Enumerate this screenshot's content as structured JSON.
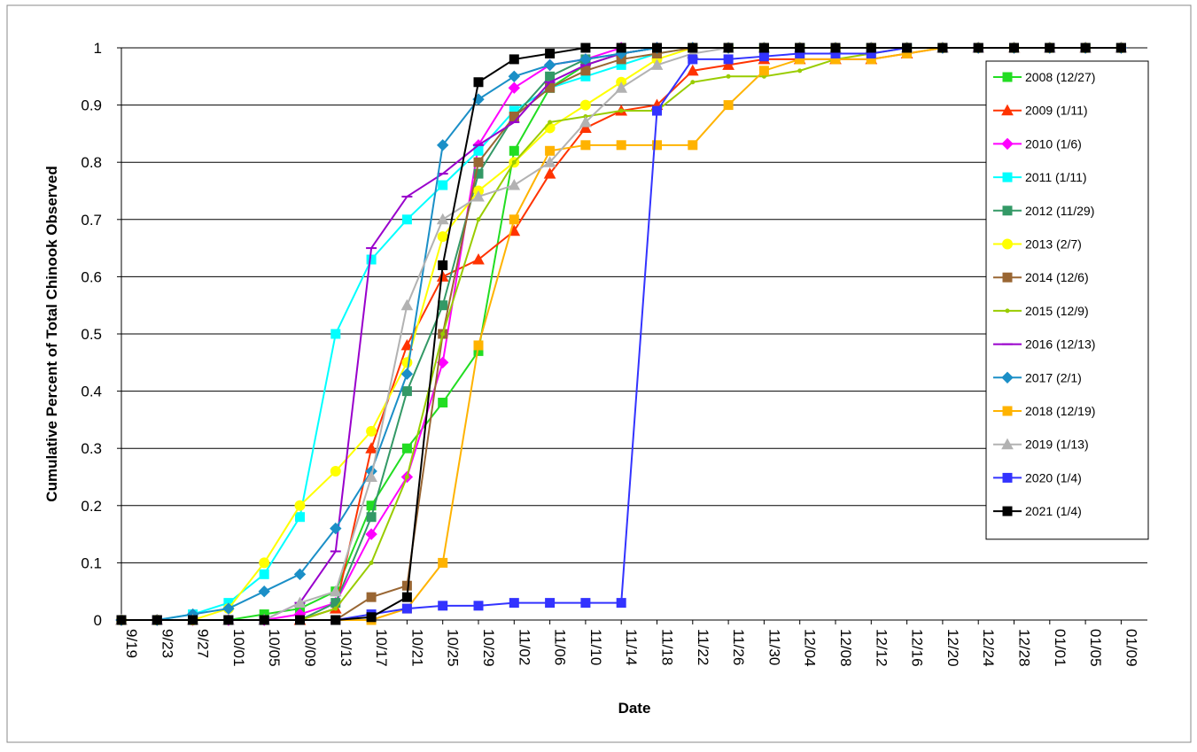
{
  "chart_data": {
    "type": "line",
    "y_label": "Cumulative Percent of Total Chinook Observed",
    "x_label": "Date",
    "categories": [
      "9/19",
      "9/23",
      "9/27",
      "10/01",
      "10/05",
      "10/09",
      "10/13",
      "10/17",
      "10/21",
      "10/25",
      "10/29",
      "11/02",
      "11/06",
      "11/10",
      "11/14",
      "11/18",
      "11/22",
      "11/26",
      "11/30",
      "12/04",
      "12/08",
      "12/12",
      "12/16",
      "12/20",
      "12/24",
      "12/28",
      "01/01",
      "01/05",
      "01/09"
    ],
    "ylim": [
      0,
      1
    ],
    "yticks": [
      0,
      0.1,
      0.2,
      0.3,
      0.4,
      0.5,
      0.6,
      0.7,
      0.8,
      0.9,
      1
    ],
    "grid": true,
    "legend": "right",
    "series": [
      {
        "name": "2008 (12/27)",
        "color": "#22dd22",
        "marker": "square",
        "values": [
          0,
          0,
          0,
          0,
          0.01,
          0.02,
          0.05,
          0.2,
          0.3,
          0.38,
          0.47,
          0.82,
          0.93,
          0.97,
          0.99,
          1,
          1,
          1,
          1,
          1,
          1,
          1,
          1,
          1,
          1,
          1,
          1,
          1,
          1
        ]
      },
      {
        "name": "2009 (1/11)",
        "color": "#ff3300",
        "marker": "triangle",
        "values": [
          0,
          0,
          0,
          0,
          0,
          0,
          0.02,
          0.3,
          0.48,
          0.6,
          0.63,
          0.68,
          0.78,
          0.86,
          0.89,
          0.9,
          0.96,
          0.97,
          0.98,
          0.98,
          0.98,
          0.98,
          0.99,
          1,
          1,
          1,
          1,
          1,
          1
        ]
      },
      {
        "name": "2010 (1/6)",
        "color": "#ff00ff",
        "marker": "diamond",
        "values": [
          0,
          0,
          0,
          0,
          0,
          0.01,
          0.03,
          0.15,
          0.25,
          0.45,
          0.83,
          0.93,
          0.97,
          0.98,
          1,
          1,
          1,
          1,
          1,
          1,
          1,
          1,
          1,
          1,
          1,
          1,
          1,
          1,
          1
        ]
      },
      {
        "name": "2011 (1/11)",
        "color": "#00ffff",
        "marker": "square",
        "values": [
          0,
          0,
          0.01,
          0.03,
          0.08,
          0.18,
          0.5,
          0.63,
          0.7,
          0.76,
          0.82,
          0.89,
          0.93,
          0.95,
          0.97,
          0.99,
          1,
          1,
          1,
          1,
          1,
          1,
          1,
          1,
          1,
          1,
          1,
          1,
          1
        ]
      },
      {
        "name": "2012 (11/29)",
        "color": "#339966",
        "marker": "square",
        "values": [
          0,
          0,
          0,
          0,
          0,
          0,
          0.03,
          0.18,
          0.4,
          0.55,
          0.78,
          0.88,
          0.95,
          0.98,
          0.99,
          1,
          1,
          1,
          1,
          1,
          1,
          1,
          1,
          1,
          1,
          1,
          1,
          1,
          1
        ]
      },
      {
        "name": "2013 (2/7)",
        "color": "#ffff00",
        "marker": "circle",
        "values": [
          0,
          0,
          0,
          0.02,
          0.1,
          0.2,
          0.26,
          0.33,
          0.45,
          0.67,
          0.75,
          0.8,
          0.86,
          0.9,
          0.94,
          0.98,
          1,
          1,
          1,
          1,
          1,
          1,
          1,
          1,
          1,
          1,
          1,
          1,
          1
        ]
      },
      {
        "name": "2014 (12/6)",
        "color": "#996633",
        "marker": "square",
        "values": [
          0,
          0,
          0,
          0,
          0,
          0,
          0,
          0.04,
          0.06,
          0.5,
          0.8,
          0.88,
          0.93,
          0.96,
          0.98,
          0.99,
          1,
          1,
          1,
          1,
          1,
          1,
          1,
          1,
          1,
          1,
          1,
          1,
          1
        ]
      },
      {
        "name": "2015 (12/9)",
        "color": "#99cc00",
        "marker": "dot",
        "values": [
          0,
          0,
          0,
          0,
          0,
          0,
          0.02,
          0.1,
          0.25,
          0.5,
          0.7,
          0.8,
          0.87,
          0.88,
          0.89,
          0.89,
          0.94,
          0.95,
          0.95,
          0.96,
          0.98,
          0.99,
          1,
          1,
          1,
          1,
          1,
          1,
          1
        ]
      },
      {
        "name": "2016 (12/13)",
        "color": "#9900cc",
        "marker": "dash",
        "values": [
          0,
          0,
          0,
          0,
          0,
          0.03,
          0.12,
          0.65,
          0.74,
          0.78,
          0.83,
          0.87,
          0.94,
          0.97,
          0.99,
          1,
          1,
          1,
          1,
          1,
          1,
          1,
          1,
          1,
          1,
          1,
          1,
          1,
          1
        ]
      },
      {
        "name": "2017 (2/1)",
        "color": "#1b8fc7",
        "marker": "diamond",
        "values": [
          0,
          0,
          0.01,
          0.02,
          0.05,
          0.08,
          0.16,
          0.26,
          0.43,
          0.83,
          0.91,
          0.95,
          0.97,
          0.98,
          0.99,
          1,
          1,
          1,
          1,
          1,
          1,
          1,
          1,
          1,
          1,
          1,
          1,
          1,
          1
        ]
      },
      {
        "name": "2018 (12/19)",
        "color": "#ffb300",
        "marker": "square",
        "values": [
          0,
          0,
          0,
          0,
          0,
          0,
          0,
          0,
          0.02,
          0.1,
          0.48,
          0.7,
          0.82,
          0.83,
          0.83,
          0.83,
          0.83,
          0.9,
          0.96,
          0.98,
          0.98,
          0.98,
          0.99,
          1,
          1,
          1,
          1,
          1,
          1
        ]
      },
      {
        "name": "2019 (1/13)",
        "color": "#b2b2b2",
        "marker": "triangle",
        "values": [
          0,
          0,
          0,
          0,
          0,
          0.03,
          0.05,
          0.25,
          0.55,
          0.7,
          0.74,
          0.76,
          0.8,
          0.87,
          0.93,
          0.97,
          0.99,
          1,
          1,
          1,
          1,
          1,
          1,
          1,
          1,
          1,
          1,
          1,
          1
        ]
      },
      {
        "name": "2020 (1/4)",
        "color": "#3333ff",
        "marker": "square",
        "values": [
          0,
          0,
          0,
          0,
          0,
          0,
          0,
          0.01,
          0.02,
          0.025,
          0.025,
          0.03,
          0.03,
          0.03,
          0.03,
          0.89,
          0.98,
          0.98,
          0.985,
          0.99,
          0.99,
          0.99,
          1,
          1,
          1,
          1,
          1,
          1,
          1
        ]
      },
      {
        "name": "2021 (1/4)",
        "color": "#000000",
        "marker": "square",
        "values": [
          0,
          0,
          0,
          0,
          0,
          0,
          0,
          0.005,
          0.04,
          0.62,
          0.94,
          0.98,
          0.99,
          1,
          1,
          1,
          1,
          1,
          1,
          1,
          1,
          1,
          1,
          1,
          1,
          1,
          1,
          1,
          1
        ]
      }
    ]
  }
}
